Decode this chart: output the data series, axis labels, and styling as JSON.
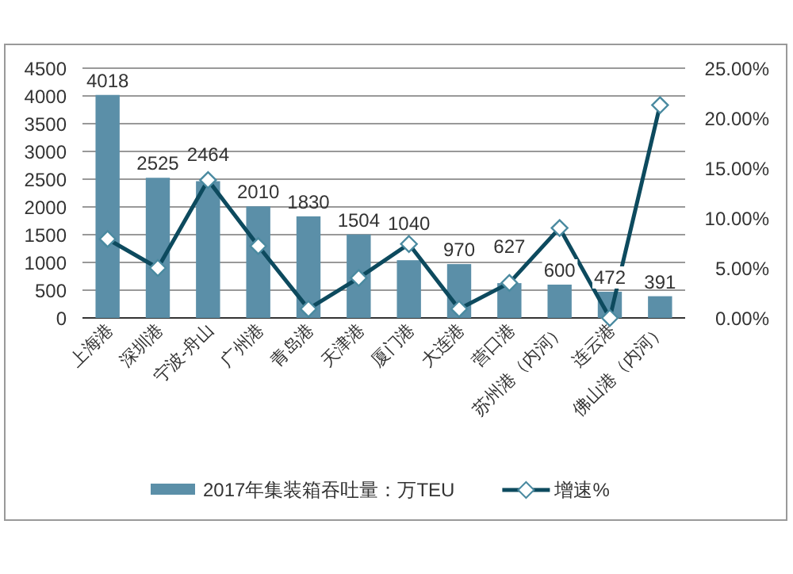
{
  "chart_data": {
    "type": "bar",
    "categories": [
      "上海港",
      "深圳港",
      "宁波-舟山",
      "广州港",
      "青岛港",
      "天津港",
      "厦门港",
      "大连港",
      "营口港",
      "苏州港（内河）",
      "连云港",
      "佛山港（内河）"
    ],
    "series": [
      {
        "name": "2017年集装箱吞吐量：万TEU",
        "color": "#5b8fa8",
        "values": [
          4018,
          2525,
          2464,
          2010,
          1830,
          1504,
          1040,
          970,
          627,
          600,
          472,
          391
        ],
        "value_labels": [
          "4018",
          "2525",
          "2464",
          "2010",
          "1830",
          "1504",
          "1040",
          "970",
          "627",
          "600",
          "472",
          "391"
        ]
      },
      {
        "name": "增速%",
        "type": "line",
        "axis": "y2",
        "color": "#0d4a5e",
        "marker": "diamond",
        "values": [
          7.9,
          5.0,
          13.8,
          7.2,
          0.9,
          4.0,
          7.4,
          0.9,
          3.5,
          9.0,
          0,
          21.3
        ]
      }
    ],
    "ylim": [
      0,
      4500
    ],
    "yticks": [
      0,
      500,
      1000,
      1500,
      2000,
      2500,
      3000,
      3500,
      4000,
      4500
    ],
    "y2lim": [
      0,
      25
    ],
    "y2ticks": [
      {
        "value": 0,
        "label": "0.00%"
      },
      {
        "value": 5,
        "label": "5.00%"
      },
      {
        "value": 10,
        "label": "10.00%"
      },
      {
        "value": 15,
        "label": "15.00%"
      },
      {
        "value": 20,
        "label": "20.00%"
      },
      {
        "value": 25,
        "label": "25.00%"
      }
    ],
    "grid": "y",
    "legend": "bottom"
  }
}
